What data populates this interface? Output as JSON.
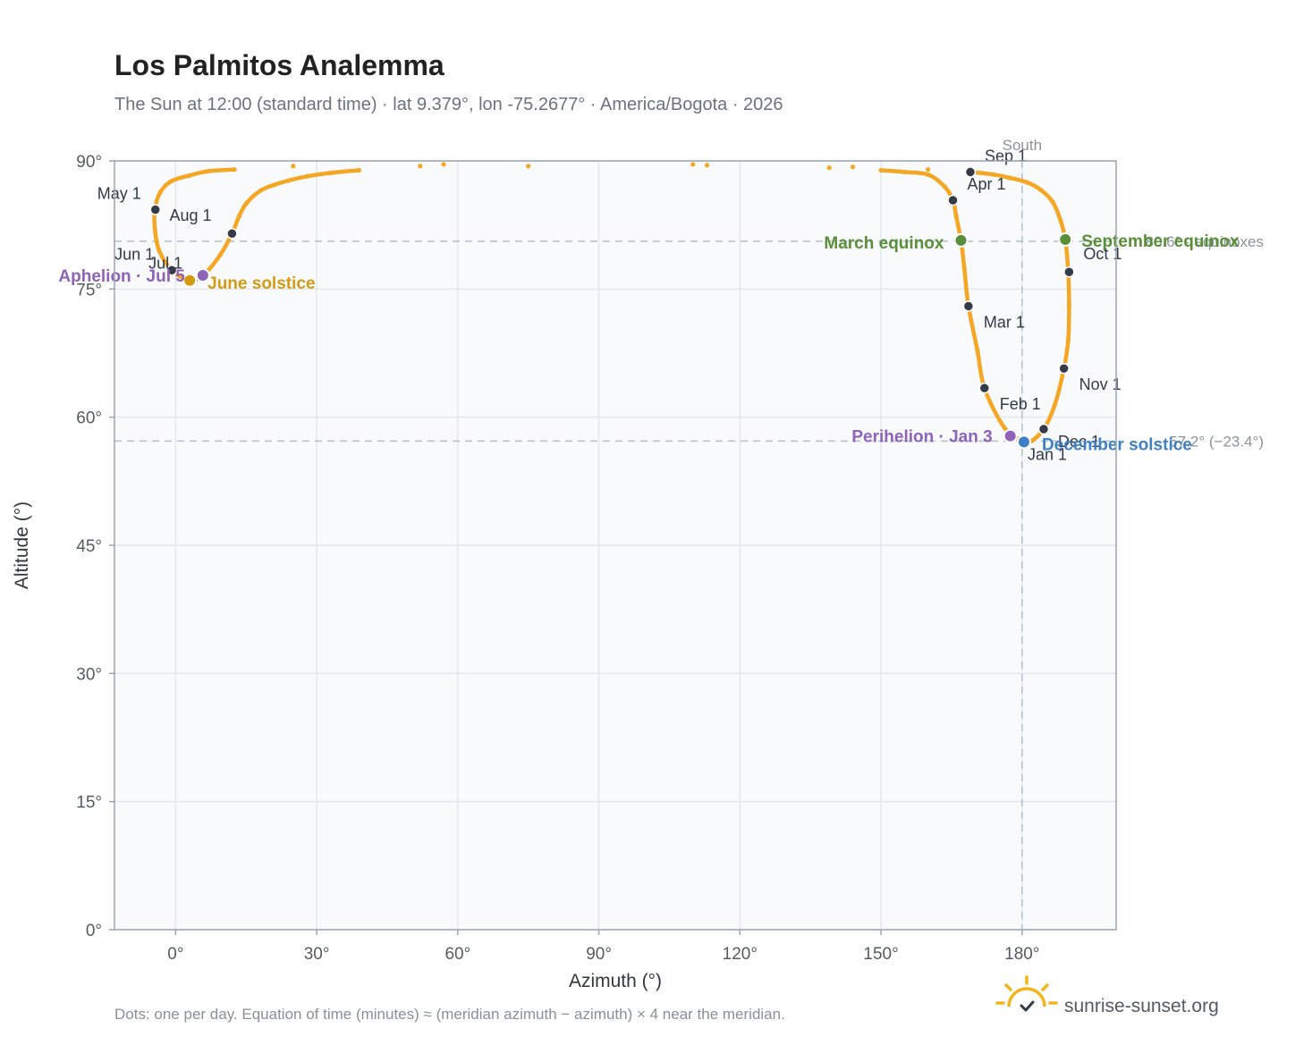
{
  "header": {
    "title": "Los Palmitos Analemma",
    "subtitle": "The Sun at 12:00 (standard time) · lat 9.379°, lon -75.2677° · America/Bogota · 2026"
  },
  "footer": {
    "note": "Dots: one per day. Equation of time (minutes) ≈ (meridian azimuth − azimuth) × 4 near the meridian.",
    "brand": "sunrise-sunset.org"
  },
  "colors": {
    "plot_bg": "#f8fafc",
    "frame": "#9aa4b2",
    "grid": "#e3e8ee",
    "analemma": "#f5a623",
    "month_marker": "#343a46",
    "equinox": "#5a8f3a",
    "june_solstice": "#d49a12",
    "december_solstice": "#3f7fc6",
    "apsis": "#8e63b8",
    "reference": "#b4bfcc"
  },
  "chart_data": {
    "type": "scatter",
    "title": "Los Palmitos Analemma",
    "xlabel": "Azimuth (°)",
    "ylabel": "Altitude (°)",
    "xlim": [
      -13,
      200
    ],
    "ylim": [
      0,
      90
    ],
    "x_ticks": [
      0,
      30,
      60,
      90,
      120,
      150,
      180
    ],
    "y_ticks": [
      0,
      15,
      30,
      45,
      60,
      75,
      90
    ],
    "x_tick_labels": [
      "0°",
      "30°",
      "60°",
      "90°",
      "120°",
      "150°",
      "180°"
    ],
    "y_tick_labels": [
      "0°",
      "15°",
      "30°",
      "45°",
      "60°",
      "75°",
      "90°"
    ],
    "grid": true,
    "daily_path_keypoints": [
      {
        "x": 180.4,
        "y": 57.1
      },
      {
        "x": 176.2,
        "y": 58.8
      },
      {
        "x": 172.0,
        "y": 63.4
      },
      {
        "x": 170.5,
        "y": 67.8
      },
      {
        "x": 168.6,
        "y": 73.0
      },
      {
        "x": 167.7,
        "y": 77.5
      },
      {
        "x": 167.0,
        "y": 80.7
      },
      {
        "x": 166.0,
        "y": 83.5
      },
      {
        "x": 165.3,
        "y": 85.4
      },
      {
        "x": 163.5,
        "y": 87.0
      },
      {
        "x": 160.0,
        "y": 88.4
      },
      {
        "x": 155.0,
        "y": 88.7
      },
      {
        "x": 150.0,
        "y": 88.9
      },
      {
        "x": 139.0,
        "y": 89.2
      },
      {
        "x": 113.0,
        "y": 89.5
      },
      {
        "x": 75.0,
        "y": 89.4
      },
      {
        "x": 57.0,
        "y": 89.6
      },
      {
        "x": 39.0,
        "y": 88.9
      },
      {
        "x": 33.0,
        "y": 88.6
      },
      {
        "x": 28.0,
        "y": 88.2
      },
      {
        "x": 24.0,
        "y": 87.7
      },
      {
        "x": 21.0,
        "y": 87.2
      },
      {
        "x": 18.0,
        "y": 86.5
      },
      {
        "x": 15.0,
        "y": 85.0
      },
      {
        "x": 13.5,
        "y": 83.5
      },
      {
        "x": 12.0,
        "y": 81.5
      },
      {
        "x": 9.5,
        "y": 79.0
      },
      {
        "x": 5.8,
        "y": 76.6
      },
      {
        "x": 3.0,
        "y": 76.0
      },
      {
        "x": -0.8,
        "y": 77.2
      },
      {
        "x": -3.5,
        "y": 79.5
      },
      {
        "x": -4.4,
        "y": 82.0
      },
      {
        "x": -4.4,
        "y": 84.3
      },
      {
        "x": -3.3,
        "y": 86.3
      },
      {
        "x": -1.0,
        "y": 87.6
      },
      {
        "x": 3.0,
        "y": 88.3
      },
      {
        "x": 7.0,
        "y": 88.8
      },
      {
        "x": 12.5,
        "y": 89.0
      },
      {
        "x": 25.0,
        "y": 89.4
      },
      {
        "x": 52.0,
        "y": 89.4
      },
      {
        "x": 110.0,
        "y": 89.6
      },
      {
        "x": 144.0,
        "y": 89.3
      },
      {
        "x": 160.0,
        "y": 89.0
      },
      {
        "x": 169.0,
        "y": 88.7
      },
      {
        "x": 174.0,
        "y": 88.4
      },
      {
        "x": 177.5,
        "y": 88.0
      },
      {
        "x": 181.0,
        "y": 87.5
      },
      {
        "x": 184.0,
        "y": 86.6
      },
      {
        "x": 186.5,
        "y": 85.2
      },
      {
        "x": 188.2,
        "y": 83.0
      },
      {
        "x": 189.2,
        "y": 80.8
      },
      {
        "x": 189.8,
        "y": 77.0
      },
      {
        "x": 190.0,
        "y": 73.0
      },
      {
        "x": 189.8,
        "y": 69.0
      },
      {
        "x": 188.9,
        "y": 65.7
      },
      {
        "x": 187.0,
        "y": 61.5
      },
      {
        "x": 184.6,
        "y": 58.6
      },
      {
        "x": 182.0,
        "y": 57.2
      },
      {
        "x": 180.4,
        "y": 57.1
      }
    ],
    "month_markers": [
      {
        "label": "Jan 1",
        "x": 180.4,
        "y": 57.1
      },
      {
        "label": "Feb 1",
        "x": 172.0,
        "y": 63.4
      },
      {
        "label": "Mar 1",
        "x": 168.6,
        "y": 73.0
      },
      {
        "label": "Apr 1",
        "x": 165.3,
        "y": 85.4
      },
      {
        "label": "May 1",
        "x": -4.3,
        "y": 84.3
      },
      {
        "label": "Jun 1",
        "x": -0.8,
        "y": 77.2
      },
      {
        "label": "Jul 1",
        "x": -0.8,
        "y": 77.2
      },
      {
        "label": "Aug 1",
        "x": 12.0,
        "y": 81.5
      },
      {
        "label": "Sep 1",
        "x": 169.0,
        "y": 88.7
      },
      {
        "label": "Oct 1",
        "x": 190.0,
        "y": 77.0
      },
      {
        "label": "Nov 1",
        "x": 188.9,
        "y": 65.7
      },
      {
        "label": "Dec 1",
        "x": 184.6,
        "y": 58.6
      }
    ],
    "events": [
      {
        "label": "March equinox",
        "x": 167.0,
        "y": 80.7,
        "kind": "equinox"
      },
      {
        "label": "September equinox",
        "x": 189.2,
        "y": 80.8,
        "kind": "equinox"
      },
      {
        "label": "June solstice",
        "x": 3.0,
        "y": 76.0,
        "kind": "june_solstice"
      },
      {
        "label": "December solstice",
        "x": 180.4,
        "y": 57.1,
        "kind": "december_solstice"
      },
      {
        "label": "Aphelion · Jul 5",
        "x": 5.8,
        "y": 76.6,
        "kind": "apsis"
      },
      {
        "label": "Perihelion · Jan 3",
        "x": 177.5,
        "y": 57.8,
        "kind": "apsis"
      }
    ],
    "reference_lines": [
      {
        "orientation": "vertical",
        "x": 180,
        "label": "South"
      },
      {
        "orientation": "horizontal",
        "y": 80.6,
        "label": "80.6° · equinoxes"
      },
      {
        "orientation": "horizontal",
        "y": 57.2,
        "label": "57.2° (−23.4°)"
      }
    ]
  }
}
